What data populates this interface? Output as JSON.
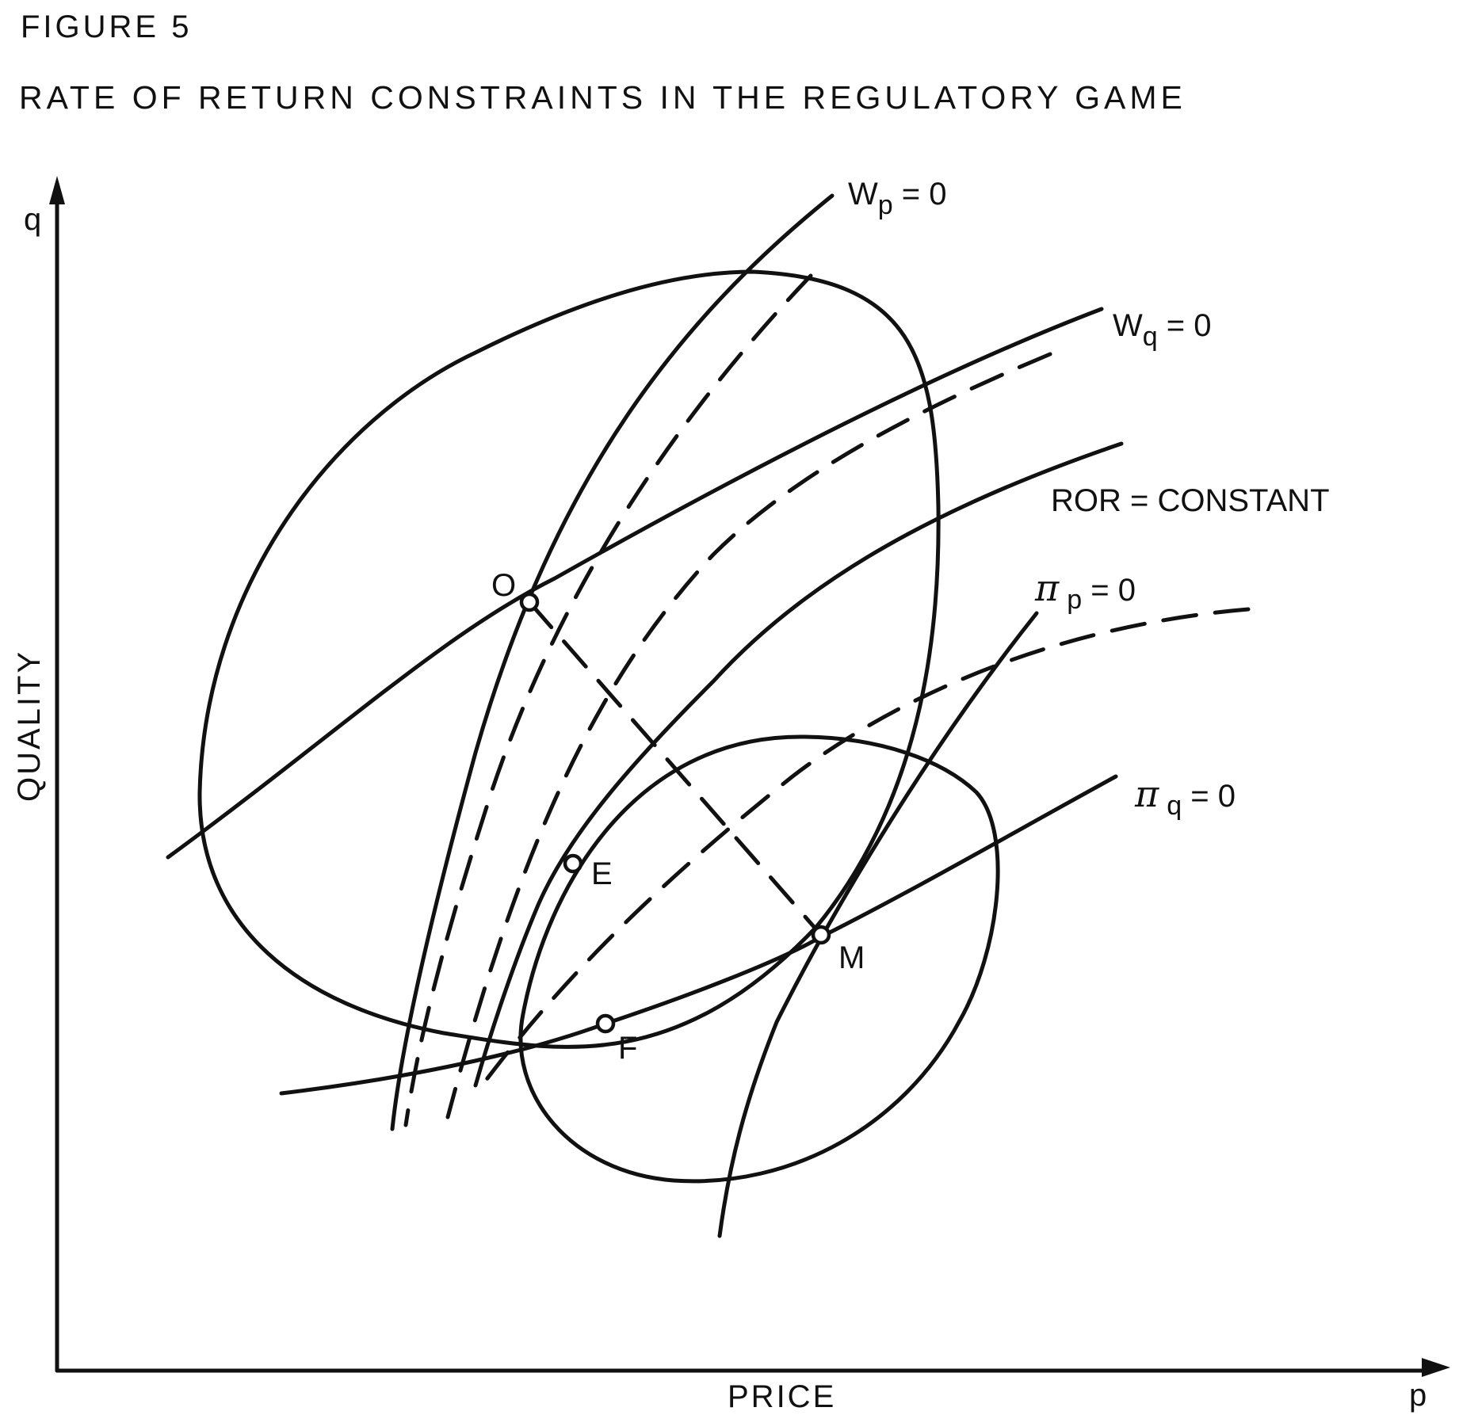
{
  "figure_label": "FIGURE 5",
  "title": "RATE OF RETURN CONSTRAINTS IN THE REGULATORY GAME",
  "axes": {
    "x_label": "PRICE",
    "x_symbol": "p",
    "y_label": "QUALITY",
    "y_symbol": "q"
  },
  "curve_labels": {
    "wp": {
      "base": "W",
      "sub": "p",
      "rest": " = 0"
    },
    "wq": {
      "base": "W",
      "sub": "q",
      "rest": " = 0"
    },
    "ror": {
      "text": "ROR = CONSTANT"
    },
    "pip": {
      "base": "π",
      "sub": "p",
      "rest": " =  0"
    },
    "piq": {
      "base": "π",
      "sub": "q",
      "rest": " = 0"
    }
  },
  "points": {
    "o": "O",
    "e": "E",
    "f": "F",
    "m": "M"
  }
}
